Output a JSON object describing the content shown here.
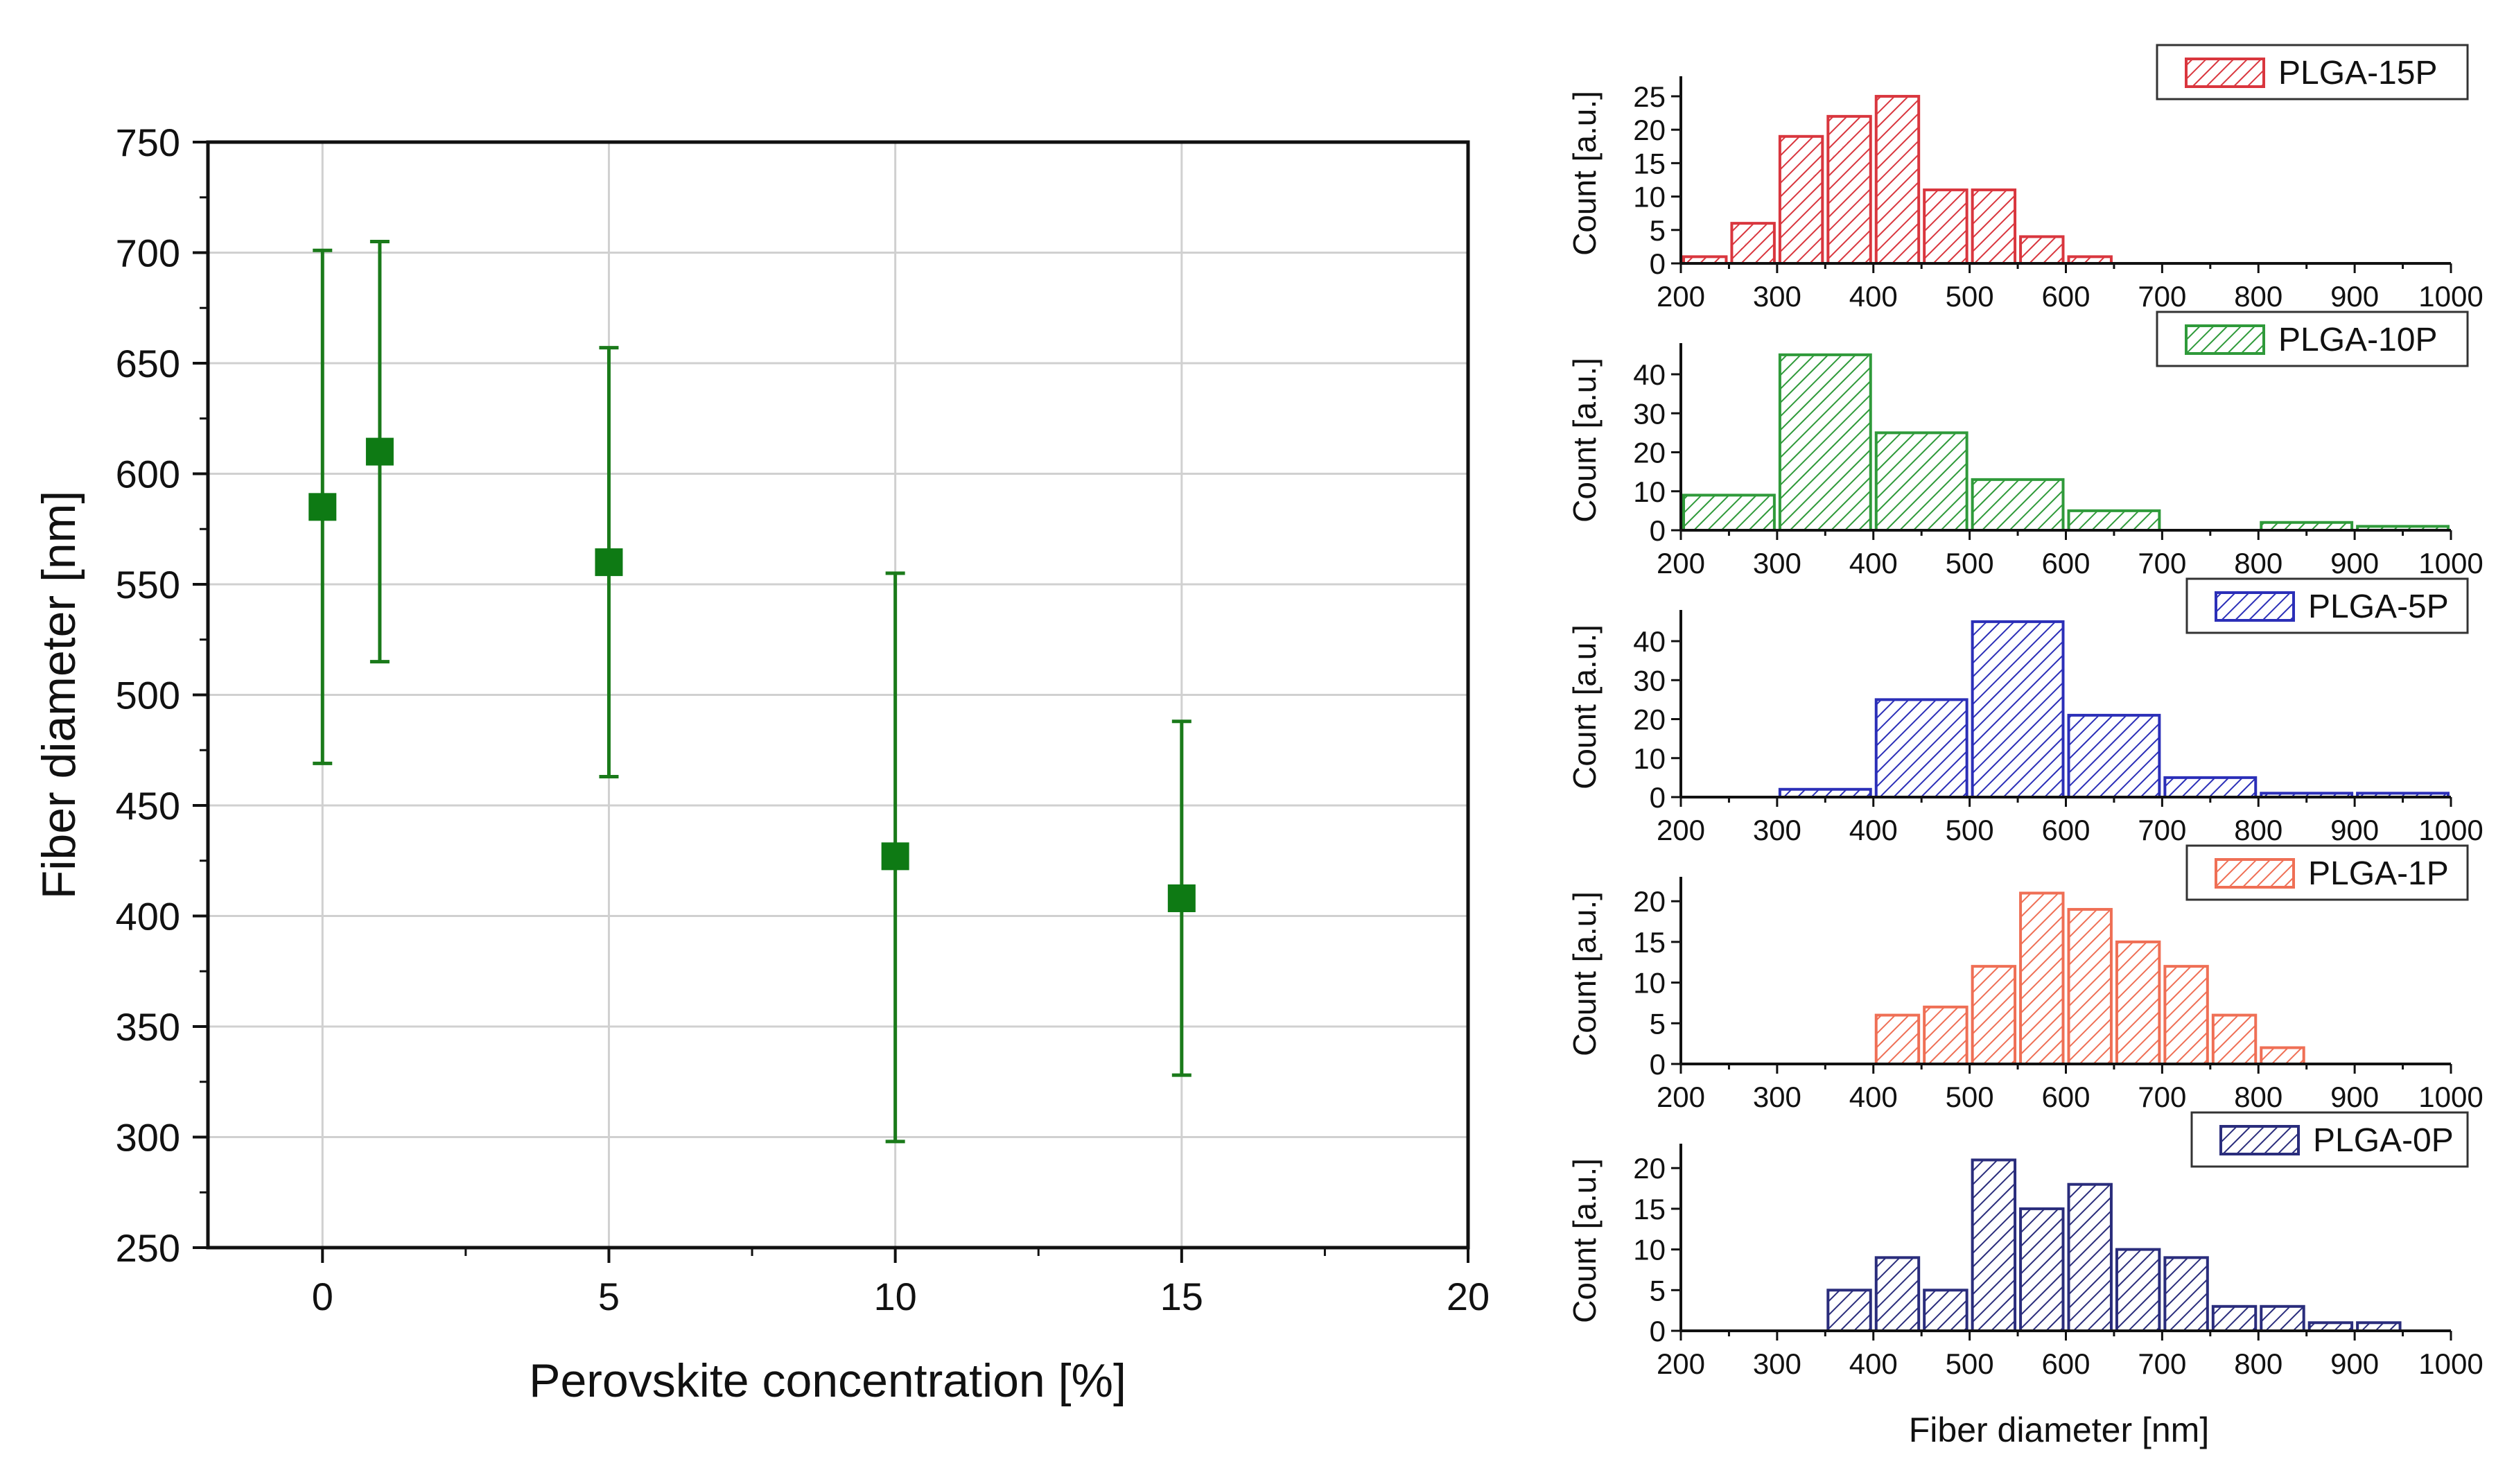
{
  "chart_data": [
    {
      "type": "scatter",
      "title": "",
      "xlabel": "Perovskite concentration [%]",
      "ylabel": "Fiber diameter [nm]",
      "xlim": [
        -2,
        20
      ],
      "ylim": [
        250,
        750
      ],
      "xticks": [
        0,
        5,
        10,
        15,
        20
      ],
      "yticks": [
        250,
        300,
        350,
        400,
        450,
        500,
        550,
        600,
        650,
        700,
        750
      ],
      "grid": true,
      "color": "#1a7a1a",
      "points": [
        {
          "x": 0,
          "y": 585,
          "err_low": 469,
          "err_high": 701
        },
        {
          "x": 1,
          "y": 610,
          "err_low": 515,
          "err_high": 705
        },
        {
          "x": 5,
          "y": 560,
          "err_low": 463,
          "err_high": 657
        },
        {
          "x": 10,
          "y": 427,
          "err_low": 298,
          "err_high": 555
        },
        {
          "x": 15,
          "y": 408,
          "err_low": 328,
          "err_high": 488
        }
      ]
    },
    {
      "type": "bar",
      "title": "PLGA-15P",
      "legend": "PLGA-15P",
      "color": "#d9363e",
      "xlabel": "",
      "ylabel": "Count [a.u.]",
      "xlim": [
        200,
        1000
      ],
      "ylim": [
        0,
        28
      ],
      "yticks": [
        0,
        5,
        10,
        15,
        20,
        25
      ],
      "xticks": [
        200,
        300,
        400,
        500,
        600,
        700,
        800,
        900,
        1000
      ],
      "bins": [
        {
          "start": 200,
          "end": 250,
          "count": 1
        },
        {
          "start": 250,
          "end": 300,
          "count": 6
        },
        {
          "start": 300,
          "end": 350,
          "count": 19
        },
        {
          "start": 350,
          "end": 400,
          "count": 22
        },
        {
          "start": 400,
          "end": 450,
          "count": 25
        },
        {
          "start": 450,
          "end": 500,
          "count": 11
        },
        {
          "start": 500,
          "end": 550,
          "count": 11
        },
        {
          "start": 550,
          "end": 600,
          "count": 4
        },
        {
          "start": 600,
          "end": 650,
          "count": 1
        }
      ]
    },
    {
      "type": "bar",
      "title": "PLGA-10P",
      "legend": "PLGA-10P",
      "color": "#2f9a3a",
      "xlabel": "",
      "ylabel": "Count [a.u.]",
      "xlim": [
        200,
        1000
      ],
      "ylim": [
        0,
        48
      ],
      "yticks": [
        0,
        10,
        20,
        30,
        40
      ],
      "xticks": [
        200,
        300,
        400,
        500,
        600,
        700,
        800,
        900,
        1000
      ],
      "bins": [
        {
          "start": 200,
          "end": 300,
          "count": 9
        },
        {
          "start": 300,
          "end": 400,
          "count": 45
        },
        {
          "start": 400,
          "end": 500,
          "count": 25
        },
        {
          "start": 500,
          "end": 600,
          "count": 13
        },
        {
          "start": 600,
          "end": 700,
          "count": 5
        },
        {
          "start": 700,
          "end": 800,
          "count": 0
        },
        {
          "start": 800,
          "end": 900,
          "count": 2
        },
        {
          "start": 900,
          "end": 1000,
          "count": 1
        }
      ]
    },
    {
      "type": "bar",
      "title": "PLGA-5P",
      "legend": "PLGA-5P",
      "color": "#2b2fb8",
      "xlabel": "",
      "ylabel": "Count [a.u.]",
      "xlim": [
        200,
        1000
      ],
      "ylim": [
        0,
        48
      ],
      "yticks": [
        0,
        10,
        20,
        30,
        40
      ],
      "xticks": [
        200,
        300,
        400,
        500,
        600,
        700,
        800,
        900,
        1000
      ],
      "bins": [
        {
          "start": 300,
          "end": 400,
          "count": 2
        },
        {
          "start": 400,
          "end": 500,
          "count": 25
        },
        {
          "start": 500,
          "end": 600,
          "count": 45
        },
        {
          "start": 600,
          "end": 700,
          "count": 21
        },
        {
          "start": 700,
          "end": 800,
          "count": 5
        },
        {
          "start": 800,
          "end": 900,
          "count": 1
        },
        {
          "start": 900,
          "end": 1000,
          "count": 1
        }
      ]
    },
    {
      "type": "bar",
      "title": "PLGA-1P",
      "legend": "PLGA-1P",
      "color": "#ef6f55",
      "xlabel": "",
      "ylabel": "Count [a.u.]",
      "xlim": [
        200,
        1000
      ],
      "ylim": [
        0,
        23
      ],
      "yticks": [
        0,
        5,
        10,
        15,
        20
      ],
      "xticks": [
        200,
        300,
        400,
        500,
        600,
        700,
        800,
        900,
        1000
      ],
      "bins": [
        {
          "start": 400,
          "end": 450,
          "count": 6
        },
        {
          "start": 450,
          "end": 500,
          "count": 7
        },
        {
          "start": 500,
          "end": 550,
          "count": 12
        },
        {
          "start": 550,
          "end": 600,
          "count": 21
        },
        {
          "start": 600,
          "end": 650,
          "count": 19
        },
        {
          "start": 650,
          "end": 700,
          "count": 15
        },
        {
          "start": 700,
          "end": 750,
          "count": 12
        },
        {
          "start": 750,
          "end": 800,
          "count": 6
        },
        {
          "start": 800,
          "end": 850,
          "count": 2
        }
      ]
    },
    {
      "type": "bar",
      "title": "PLGA-0P",
      "legend": "PLGA-0P",
      "color": "#2a2d7c",
      "xlabel": "Fiber diameter [nm]",
      "ylabel": "Count [a.u.]",
      "xlim": [
        200,
        1000
      ],
      "ylim": [
        0,
        23
      ],
      "yticks": [
        0,
        5,
        10,
        15,
        20
      ],
      "xticks": [
        200,
        300,
        400,
        500,
        600,
        700,
        800,
        900,
        1000
      ],
      "bins": [
        {
          "start": 350,
          "end": 400,
          "count": 5
        },
        {
          "start": 400,
          "end": 450,
          "count": 9
        },
        {
          "start": 450,
          "end": 500,
          "count": 5
        },
        {
          "start": 500,
          "end": 550,
          "count": 21
        },
        {
          "start": 550,
          "end": 600,
          "count": 15
        },
        {
          "start": 600,
          "end": 650,
          "count": 18
        },
        {
          "start": 650,
          "end": 700,
          "count": 10
        },
        {
          "start": 700,
          "end": 750,
          "count": 9
        },
        {
          "start": 750,
          "end": 800,
          "count": 3
        },
        {
          "start": 800,
          "end": 850,
          "count": 3
        },
        {
          "start": 850,
          "end": 900,
          "count": 1
        },
        {
          "start": 900,
          "end": 950,
          "count": 1
        }
      ]
    }
  ]
}
